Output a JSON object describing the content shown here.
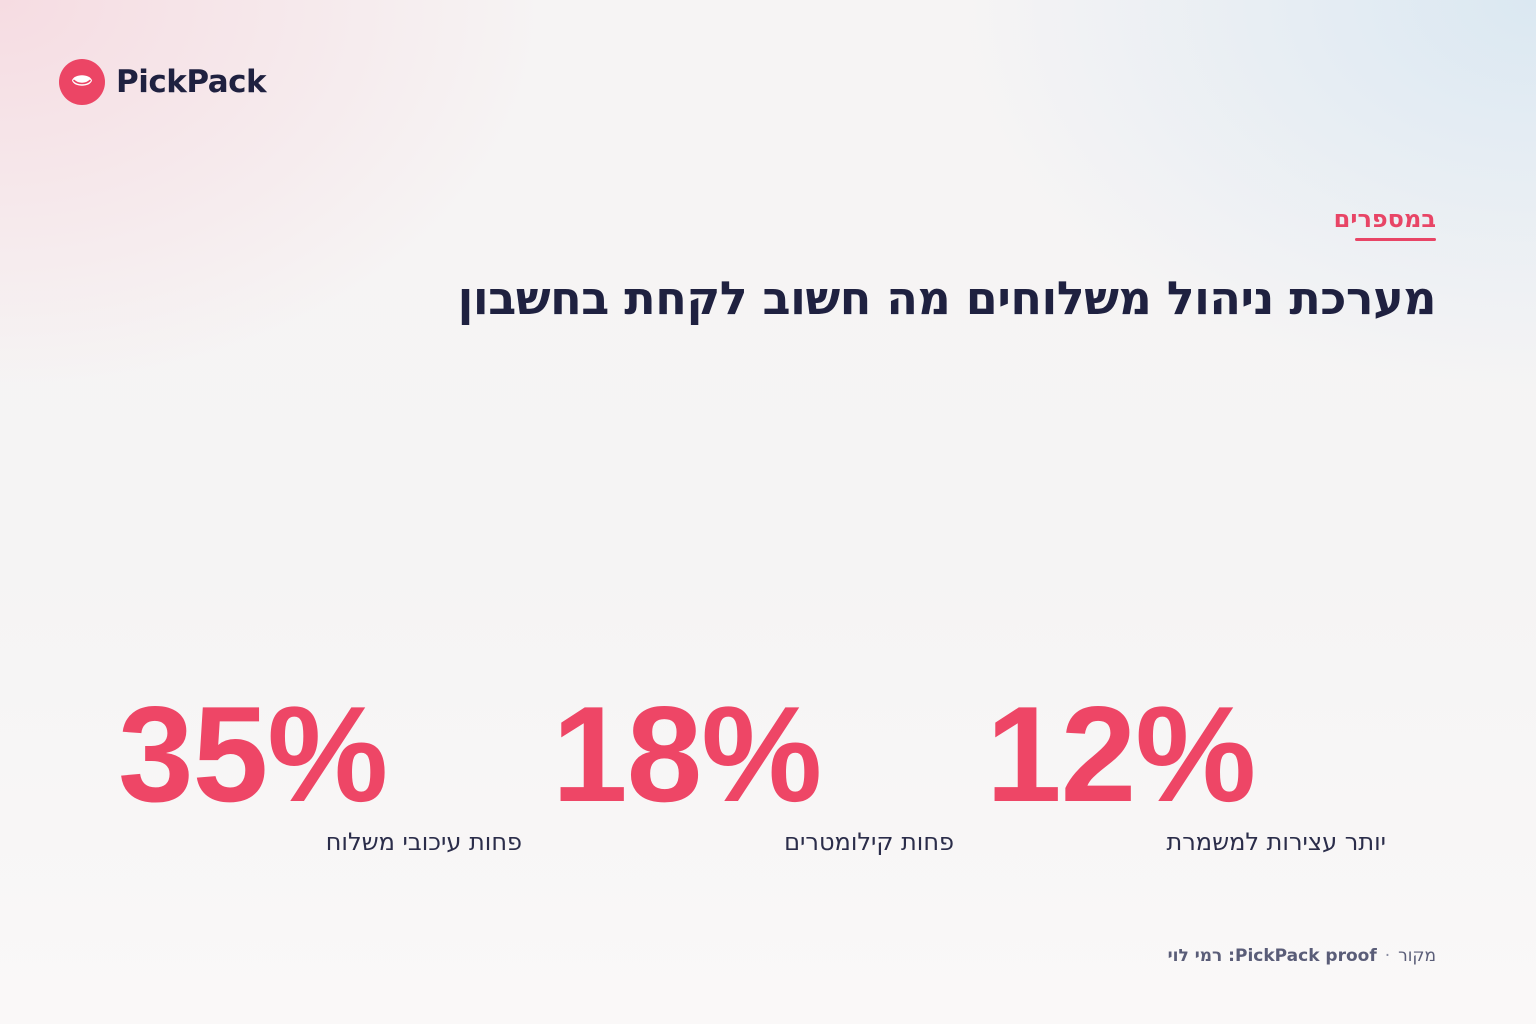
{
  "brand": {
    "name": "PickPack",
    "logo_icon": "pickpack-logo-icon",
    "accent_color": "#ee4666",
    "text_color": "#1f2140"
  },
  "header": {
    "kicker": "במספרים",
    "headline": "מערכת ניהול משלוחים מה חשוב לקחת בחשבון"
  },
  "stats": [
    {
      "value": "12%",
      "label": "יותר עצירות למשמרת"
    },
    {
      "value": "18%",
      "label": "פחות קילומטרים"
    },
    {
      "value": "35%",
      "label": "פחות עיכובי משלוח"
    }
  ],
  "footer": {
    "source_label": "מקור",
    "separator": "·",
    "source_value": "PickPack proof: רמי לוי"
  }
}
